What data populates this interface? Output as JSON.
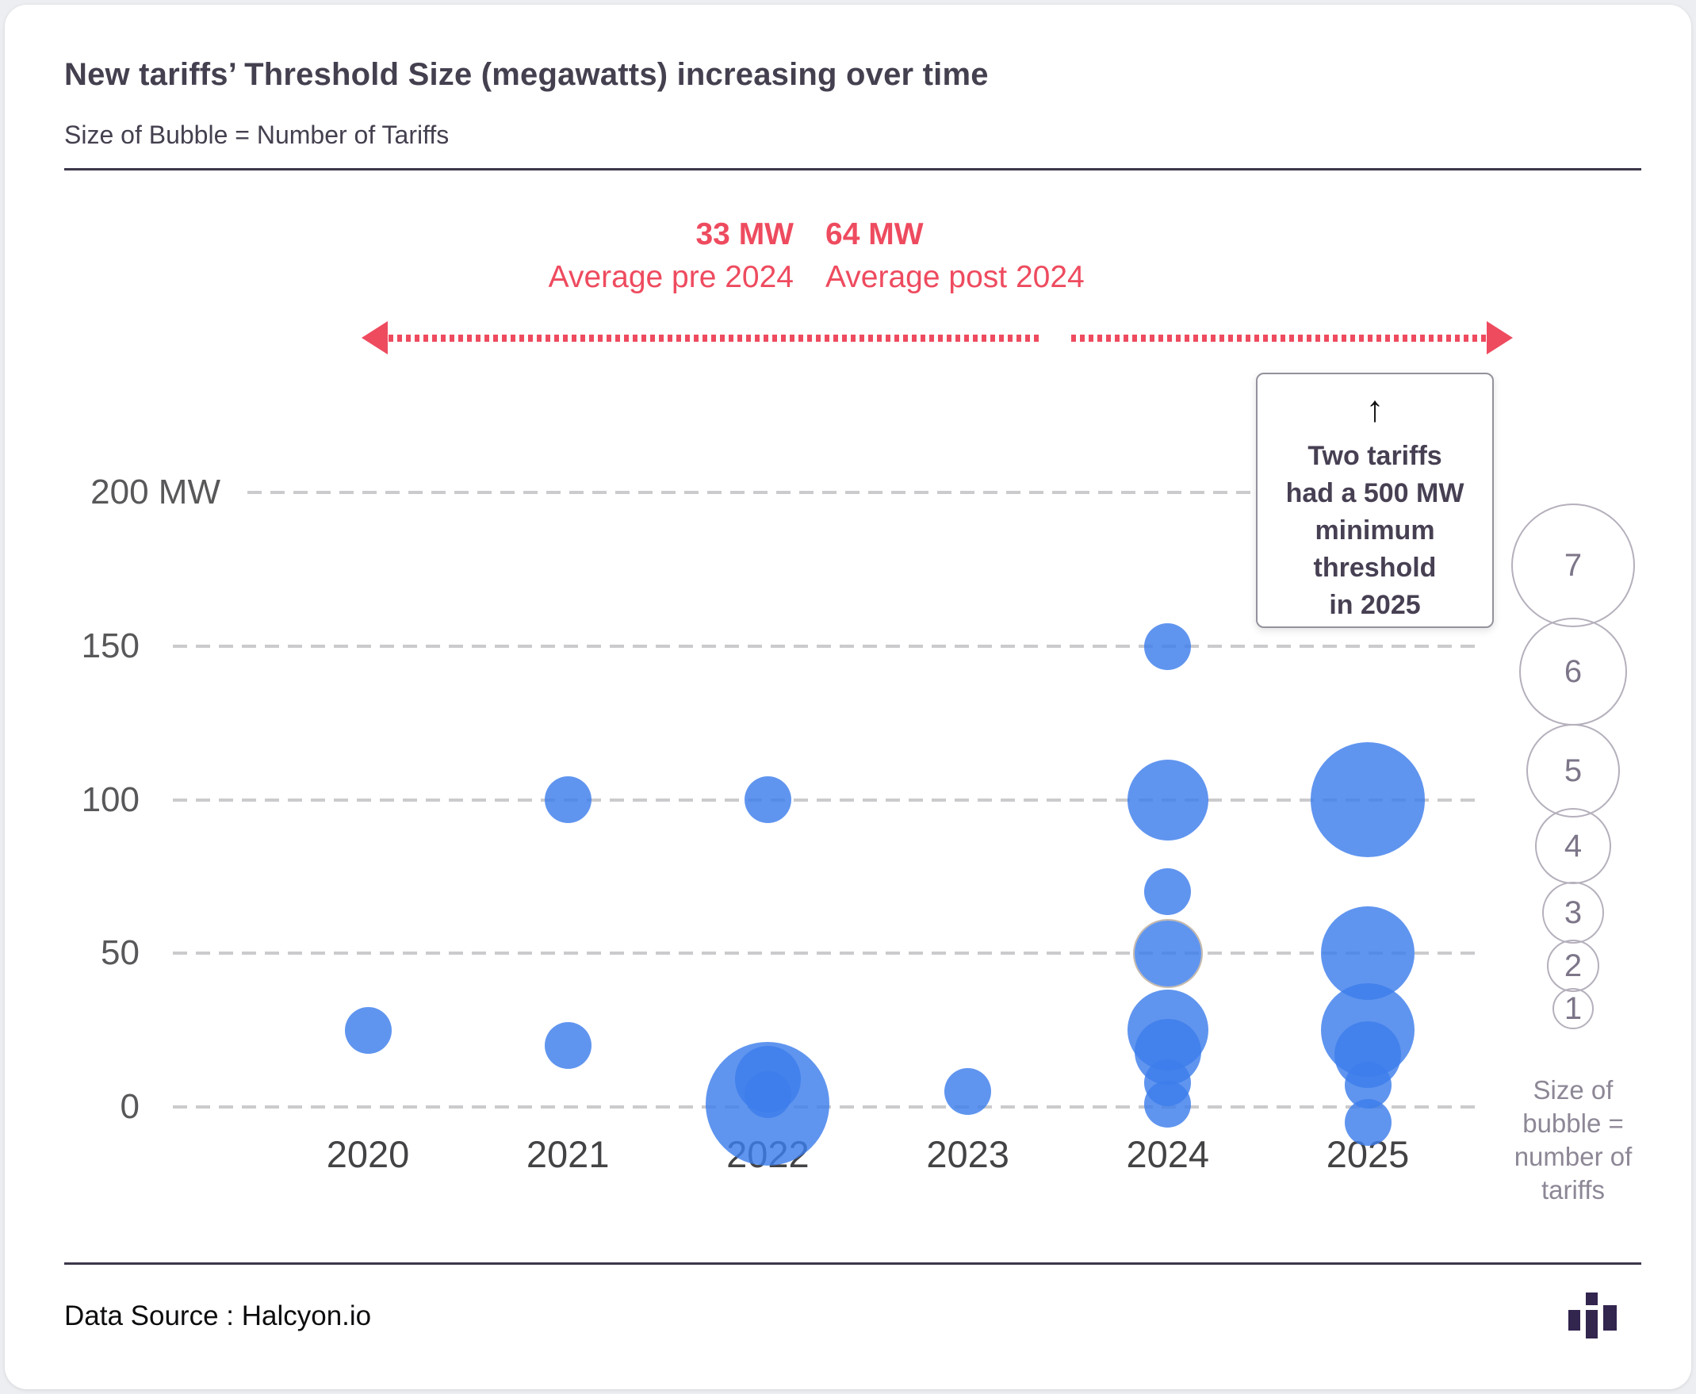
{
  "header": {
    "title": "New tariffs’ Threshold Size (megawatts) increasing over time",
    "subtitle": "Size of Bubble = Number of Tariffs"
  },
  "annotations": {
    "pre_2024": {
      "value": "33 MW",
      "label": "Average pre 2024"
    },
    "post_2024": {
      "value": "64 MW",
      "label": "Average post 2024"
    },
    "callout": {
      "arrow": "↑",
      "lines": [
        "Two tariffs",
        "had a 500 MW",
        "minimum",
        "threshold",
        "in 2025"
      ]
    }
  },
  "chart_data": {
    "type": "scatter",
    "subtype": "bubble",
    "title": "New tariffs’ Threshold Size (megawatts) increasing over time",
    "size_encoding": "Size of Bubble = Number of Tariffs",
    "xlabel": "",
    "ylabel": "MW",
    "ylim": [
      0,
      200
    ],
    "grid": "horizontal-dashed",
    "y_ticks": [
      {
        "label": "200 MW",
        "mw": 200
      },
      {
        "label": "150",
        "mw": 150
      },
      {
        "label": "100",
        "mw": 100
      },
      {
        "label": "50",
        "mw": 50
      },
      {
        "label": "0",
        "mw": 0
      }
    ],
    "years": [
      {
        "year": "2020",
        "bubbles": [
          {
            "mw": 25,
            "tariffs": 1
          }
        ]
      },
      {
        "year": "2021",
        "bubbles": [
          {
            "mw": 100,
            "tariffs": 1
          },
          {
            "mw": 20,
            "tariffs": 1
          }
        ]
      },
      {
        "year": "2022",
        "bubbles": [
          {
            "mw": 100,
            "tariffs": 1
          },
          {
            "mw": 1,
            "tariffs": 7
          },
          {
            "mw": 9,
            "tariffs": 2
          },
          {
            "mw": 4,
            "tariffs": 1
          }
        ]
      },
      {
        "year": "2023",
        "bubbles": [
          {
            "mw": 5,
            "tariffs": 1
          }
        ]
      },
      {
        "year": "2024",
        "bubbles": [
          {
            "mw": 150,
            "tariffs": 1
          },
          {
            "mw": 100,
            "tariffs": 3
          },
          {
            "mw": 70,
            "tariffs": 1
          },
          {
            "mw": 50,
            "tariffs": 2,
            "outlined": true
          },
          {
            "mw": 25,
            "tariffs": 3
          },
          {
            "mw": 18,
            "tariffs": 2
          },
          {
            "mw": 8,
            "tariffs": 1
          },
          {
            "mw": 1,
            "tariffs": 1
          }
        ]
      },
      {
        "year": "2025",
        "bubbles": [
          {
            "mw": 100,
            "tariffs": 6
          },
          {
            "mw": 50,
            "tariffs": 4
          },
          {
            "mw": 25,
            "tariffs": 4
          },
          {
            "mw": 17,
            "tariffs": 2
          },
          {
            "mw": 7,
            "tariffs": 1
          },
          {
            "mw": 0,
            "tariffs": 1,
            "dy": 19
          }
        ]
      }
    ],
    "averages": {
      "pre_2024_mw": 33,
      "post_2024_mw": 64
    },
    "notes": [
      "Two tariffs had a 500 MW minimum threshold in 2025"
    ]
  },
  "legend": {
    "sizes": [
      "7",
      "6",
      "5",
      "4",
      "3",
      "2",
      "1"
    ],
    "caption_lines": [
      "Size of",
      "bubble =",
      "number of",
      "tariffs"
    ]
  },
  "footer": {
    "source": "Data Source : Halcyon.io",
    "logo": "halcyon-logo"
  },
  "colors": {
    "accent_red": "#ee4b5f",
    "bubble_blue": "#3d7eeb",
    "title_text": "#45404f",
    "axis_text": "#58585a",
    "grid": "#cbcbce",
    "legend_text": "#7d7689",
    "divider": "#3c374b"
  }
}
